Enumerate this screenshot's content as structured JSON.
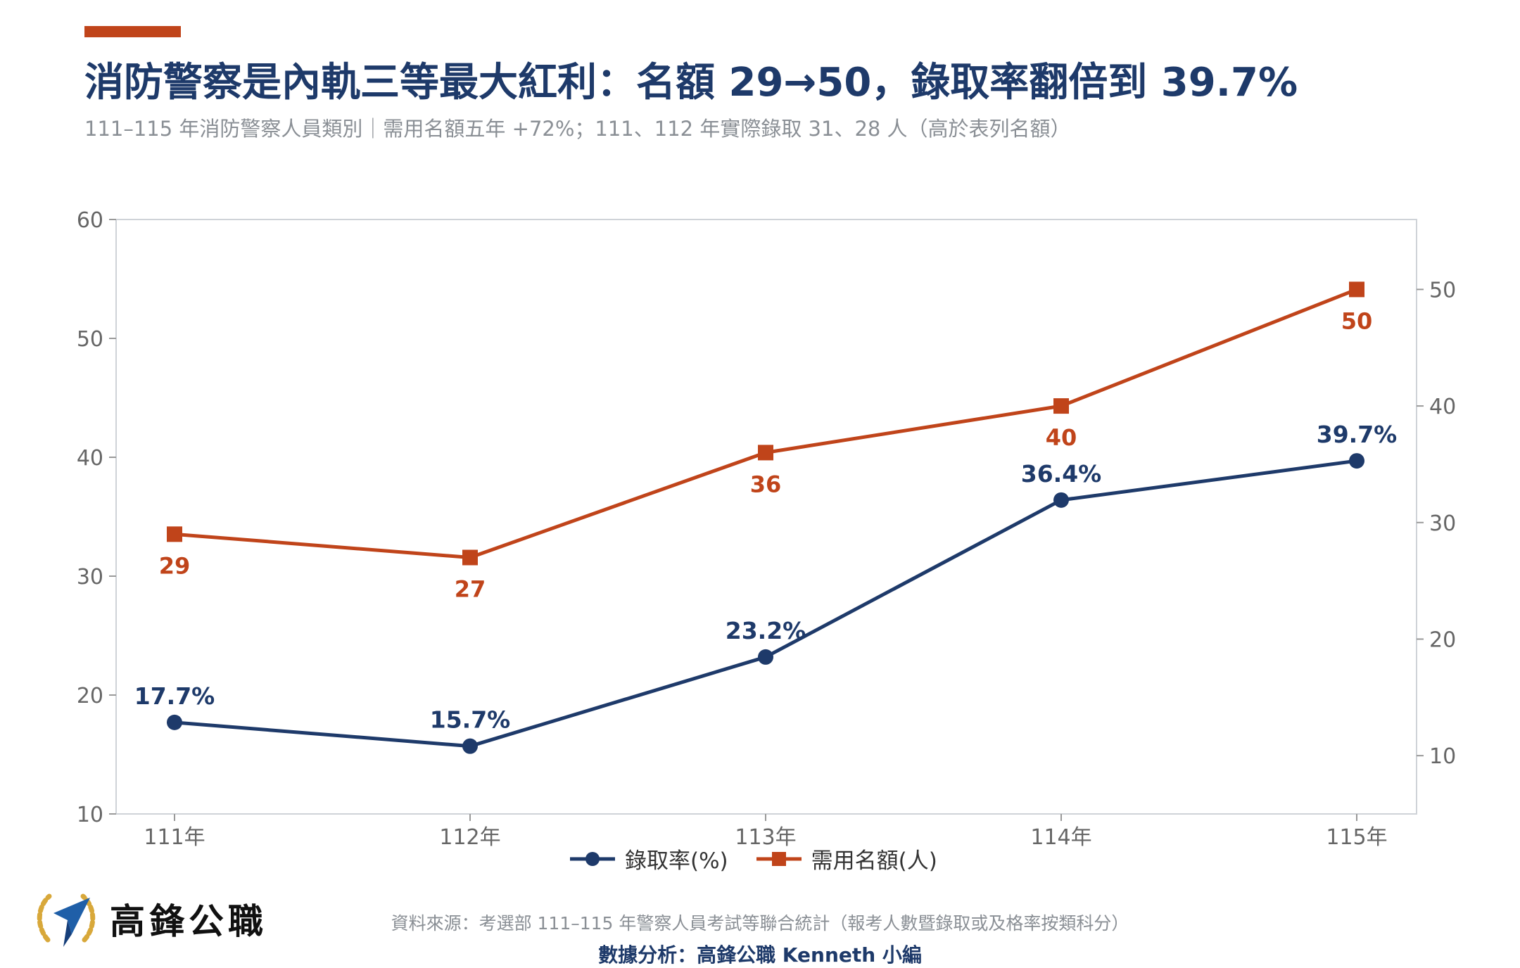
{
  "header": {
    "title": "消防警察是內軌三等最大紅利：名額 29→50，錄取率翻倍到 39.7%",
    "subtitle": "111–115 年消防警察人員類別｜需用名額五年 +72%；111、112 年實際錄取 31、28 人（高於表列名額）"
  },
  "colors": {
    "accent": "#c0441a",
    "rate_series": "#1e3a6a",
    "quota_series": "#c0441a",
    "axis": "#cfd3d8",
    "tick_text": "#666666"
  },
  "chart_data": {
    "type": "line",
    "categories": [
      "111年",
      "112年",
      "113年",
      "114年",
      "115年"
    ],
    "series": [
      {
        "name": "錄取率(%)",
        "axis": "left",
        "marker": "circle",
        "values": [
          17.7,
          15.7,
          23.2,
          36.4,
          39.7
        ],
        "labels": [
          "17.7%",
          "15.7%",
          "23.2%",
          "36.4%",
          "39.7%"
        ]
      },
      {
        "name": "需用名額(人)",
        "axis": "right",
        "marker": "square",
        "values": [
          29,
          27,
          36,
          40,
          50
        ],
        "labels": [
          "29",
          "27",
          "36",
          "40",
          "50"
        ]
      }
    ],
    "y_left": {
      "min": 10,
      "max": 60,
      "ticks": [
        10,
        20,
        30,
        40,
        50,
        60
      ]
    },
    "y_right": {
      "min": 5,
      "max": 56,
      "ticks": [
        10,
        20,
        30,
        40,
        50
      ]
    },
    "grid": false,
    "legend_position": "bottom-center"
  },
  "footer": {
    "logo_text": "高鋒公職",
    "source": "資料來源：考選部 111–115 年警察人員考試等聯合統計（報考人數暨錄取或及格率按類科分）",
    "analysis": "數據分析：高鋒公職 Kenneth 小編"
  }
}
